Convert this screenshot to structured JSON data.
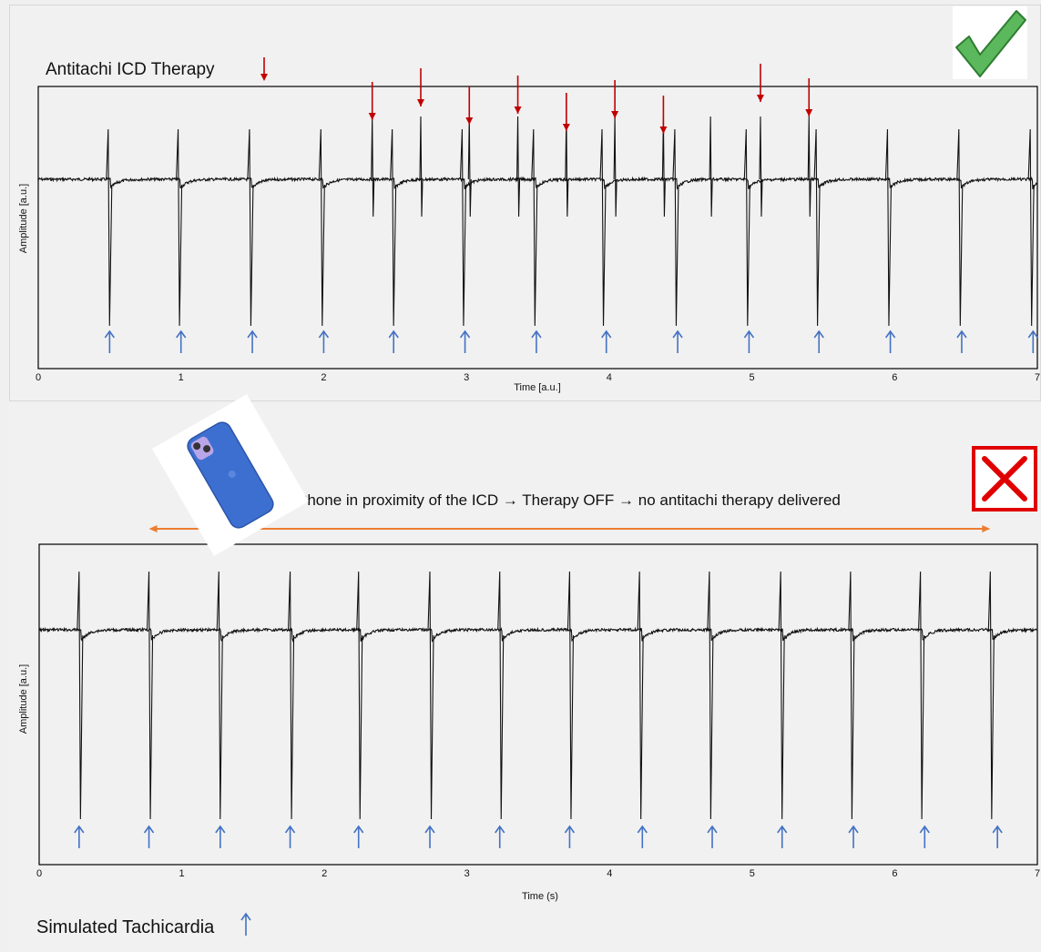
{
  "top_panel": {
    "title": "Antitachi ICD Therapy",
    "status_icon": "check-mark-icon",
    "status_color": "#4caf50"
  },
  "bottom_panel": {
    "annotation": "Phone in proximity of the ICD  → Therapy OFF → no antitachi therapy delivered",
    "footer_label": "Simulated Tachicardia",
    "status_icon": "x-mark-icon",
    "status_color": "#e00000",
    "phone_icon": "smartphone-icon",
    "range_arrow_color": "#ed7d31"
  },
  "chart_data": [
    {
      "type": "line",
      "title": "Antitachi ICD Therapy",
      "xlabel": "Time [a.u.]",
      "ylabel": "Amplitude [a.u.]",
      "xlim": [
        0,
        7
      ],
      "xticks": [
        0,
        1,
        2,
        3,
        4,
        5,
        6,
        7
      ],
      "grid": false,
      "series": [
        {
          "kind": "ventricular_beats",
          "color": "#000000",
          "x": [
            0.49,
            0.98,
            1.48,
            1.98,
            2.48,
            2.97,
            3.47,
            3.95,
            4.46,
            4.96,
            5.45,
            5.95,
            6.45,
            6.95
          ]
        },
        {
          "kind": "pacing_spikes",
          "color": "#000000",
          "x": [
            2.34,
            2.68,
            3.02,
            3.36,
            3.7,
            4.04,
            4.38,
            4.71,
            5.06,
            5.4
          ]
        }
      ],
      "markers": {
        "blue_arrows": {
          "color": "#4472c4",
          "x": [
            0.5,
            1.0,
            1.5,
            2.0,
            2.49,
            2.99,
            3.49,
            3.98,
            4.48,
            4.98,
            5.47,
            5.97,
            6.47,
            6.97
          ]
        },
        "red_arrows": {
          "color": "#c00000",
          "x": [
            2.34,
            2.68,
            3.02,
            3.36,
            3.7,
            4.04,
            4.38,
            5.06,
            5.4
          ]
        }
      }
    },
    {
      "type": "line",
      "xlabel": "Time (s)",
      "ylabel": "Amplitude [a.u.]",
      "xlim": [
        0,
        7
      ],
      "xticks": [
        0,
        1,
        2,
        3,
        4,
        5,
        6,
        7
      ],
      "grid": false,
      "series": [
        {
          "kind": "ventricular_beats",
          "color": "#000000",
          "x": [
            0.28,
            0.77,
            1.26,
            1.76,
            2.24,
            2.74,
            3.23,
            3.72,
            4.21,
            4.7,
            5.2,
            5.69,
            6.18,
            6.67
          ]
        }
      ],
      "markers": {
        "blue_arrows": {
          "color": "#4472c4",
          "x": [
            0.28,
            0.77,
            1.27,
            1.76,
            2.24,
            2.74,
            3.23,
            3.72,
            4.23,
            4.72,
            5.21,
            5.71,
            6.21,
            6.72
          ]
        }
      },
      "range_arrow": {
        "x": [
          0.77,
          6.67
        ]
      }
    }
  ]
}
